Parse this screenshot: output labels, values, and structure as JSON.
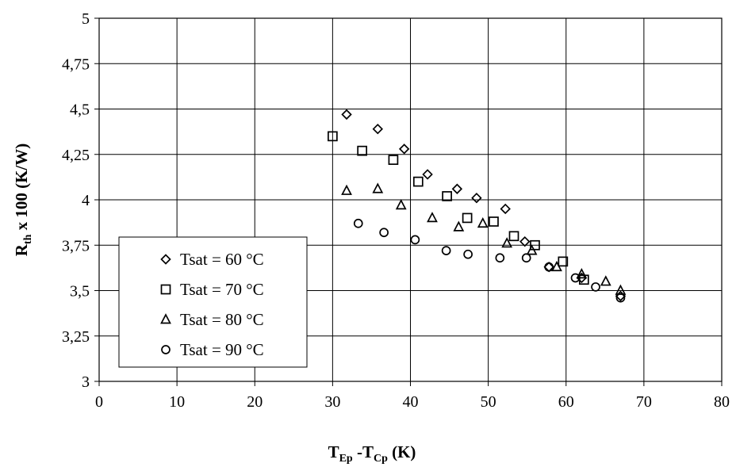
{
  "chart_data": {
    "type": "scatter",
    "xlabel": {
      "main1": "T",
      "sub1": "Ep",
      "mid": " -T",
      "sub2": "Cp",
      "tail": " (K)"
    },
    "ylabel": {
      "main": "R",
      "sub": "th",
      "tail": " x 100 (K/W)"
    },
    "xlim": [
      0,
      80
    ],
    "ylim": [
      3,
      5
    ],
    "x_ticks": [
      0,
      10,
      20,
      30,
      40,
      50,
      60,
      70,
      80
    ],
    "x_tick_labels": [
      "0",
      "10",
      "20",
      "30",
      "40",
      "50",
      "60",
      "70",
      "80"
    ],
    "y_ticks": [
      3,
      3.25,
      3.5,
      3.75,
      4,
      4.25,
      4.5,
      4.75,
      5
    ],
    "y_tick_labels": [
      "3",
      "3,25",
      "3,5",
      "3,75",
      "4",
      "4,25",
      "4,5",
      "4,75",
      "5"
    ],
    "grid": true,
    "legend_position": "bottom-left",
    "series": [
      {
        "name": "Tsat = 60 °C",
        "marker": "diamond",
        "x": [
          31.8,
          35.8,
          39.2,
          42.2,
          46.0,
          48.5,
          52.2,
          54.7,
          57.8,
          62.0,
          67.0
        ],
        "y": [
          4.47,
          4.39,
          4.28,
          4.14,
          4.06,
          4.01,
          3.95,
          3.77,
          3.63,
          3.57,
          3.47
        ]
      },
      {
        "name": "Tsat = 70 °C",
        "marker": "square",
        "x": [
          30.0,
          33.8,
          37.8,
          41.0,
          44.7,
          47.3,
          50.7,
          53.3,
          56.0,
          59.6,
          62.3
        ],
        "y": [
          4.35,
          4.27,
          4.22,
          4.1,
          4.02,
          3.9,
          3.88,
          3.8,
          3.75,
          3.66,
          3.56
        ]
      },
      {
        "name": "Tsat = 80 °C",
        "marker": "triangle",
        "x": [
          31.8,
          35.8,
          38.8,
          42.8,
          46.2,
          49.3,
          52.4,
          55.6,
          58.8,
          62.0,
          65.1,
          67.0
        ],
        "y": [
          4.05,
          4.06,
          3.97,
          3.9,
          3.85,
          3.87,
          3.76,
          3.72,
          3.63,
          3.59,
          3.55,
          3.5
        ]
      },
      {
        "name": "Tsat = 90 °C",
        "marker": "circle",
        "x": [
          33.3,
          36.6,
          40.6,
          44.6,
          47.4,
          51.5,
          54.9,
          57.8,
          61.2,
          63.8,
          67.0
        ],
        "y": [
          3.87,
          3.82,
          3.78,
          3.72,
          3.7,
          3.68,
          3.68,
          3.63,
          3.57,
          3.52,
          3.46
        ]
      }
    ]
  }
}
